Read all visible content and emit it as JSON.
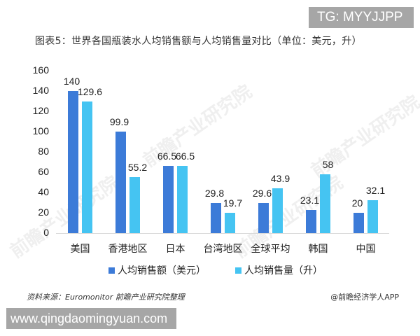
{
  "badges": {
    "tg": "TG: MYYJJPP",
    "url": "www.qingdaomingyuan.com"
  },
  "watermark": "前瞻产业研究院",
  "footer": {
    "source": "资料来源：Euromonitor 前瞻产业研究院整理",
    "credit": "@前瞻经济学人APP"
  },
  "chart_data": {
    "type": "bar",
    "title": "图表5：世界各国瓶装水人均销售额与人均销售量对比（单位：美元，升）",
    "xlabel": "",
    "ylabel": "",
    "ylim": [
      0,
      160
    ],
    "yticks": [
      0,
      20,
      40,
      60,
      80,
      100,
      120,
      140,
      160
    ],
    "grid": false,
    "legend_position": "bottom",
    "categories": [
      "美国",
      "香港地区",
      "日本",
      "台湾地区",
      "全球平均",
      "韩国",
      "中国"
    ],
    "series": [
      {
        "name": "人均销售额（美元）",
        "color": "#3c7bd8",
        "values": [
          140,
          99.9,
          66.5,
          29.8,
          29.6,
          23.1,
          20
        ]
      },
      {
        "name": "人均销售量（升）",
        "color": "#45c4f2",
        "values": [
          129.6,
          55.2,
          66.5,
          19.7,
          43.9,
          58,
          32.1
        ]
      }
    ]
  }
}
